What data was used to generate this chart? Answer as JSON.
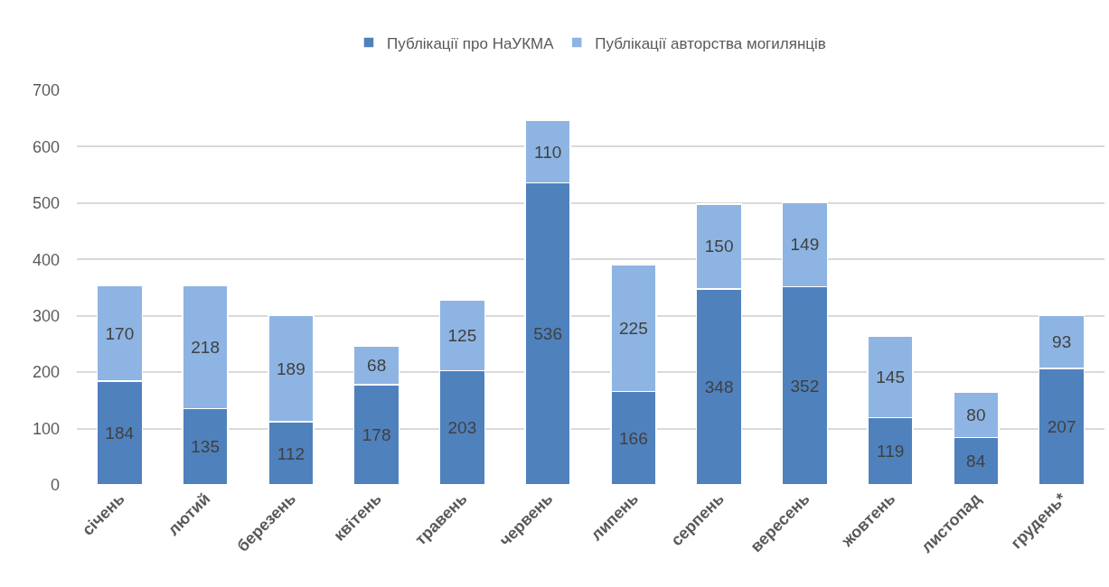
{
  "chart_data": {
    "type": "bar",
    "stacked": true,
    "categories": [
      "січень",
      "лютий",
      "березень",
      "квітень",
      "травень",
      "червень",
      "липень",
      "серпень",
      "вересень",
      "жовтень",
      "листопад",
      "грудень*"
    ],
    "series": [
      {
        "name": "Публікації про НаУКМА",
        "color": "#4f81bd",
        "values": [
          184,
          135,
          112,
          178,
          203,
          536,
          166,
          348,
          352,
          119,
          84,
          207
        ]
      },
      {
        "name": "Публікації авторства могилянців",
        "color": "#8eb4e3",
        "values": [
          170,
          218,
          189,
          68,
          125,
          110,
          225,
          150,
          149,
          145,
          80,
          93
        ]
      }
    ],
    "ylim": [
      0,
      700
    ],
    "yticks": [
      0,
      100,
      200,
      300,
      400,
      500,
      600,
      700
    ],
    "grid": "y",
    "legend": "top",
    "data_labels": true
  }
}
